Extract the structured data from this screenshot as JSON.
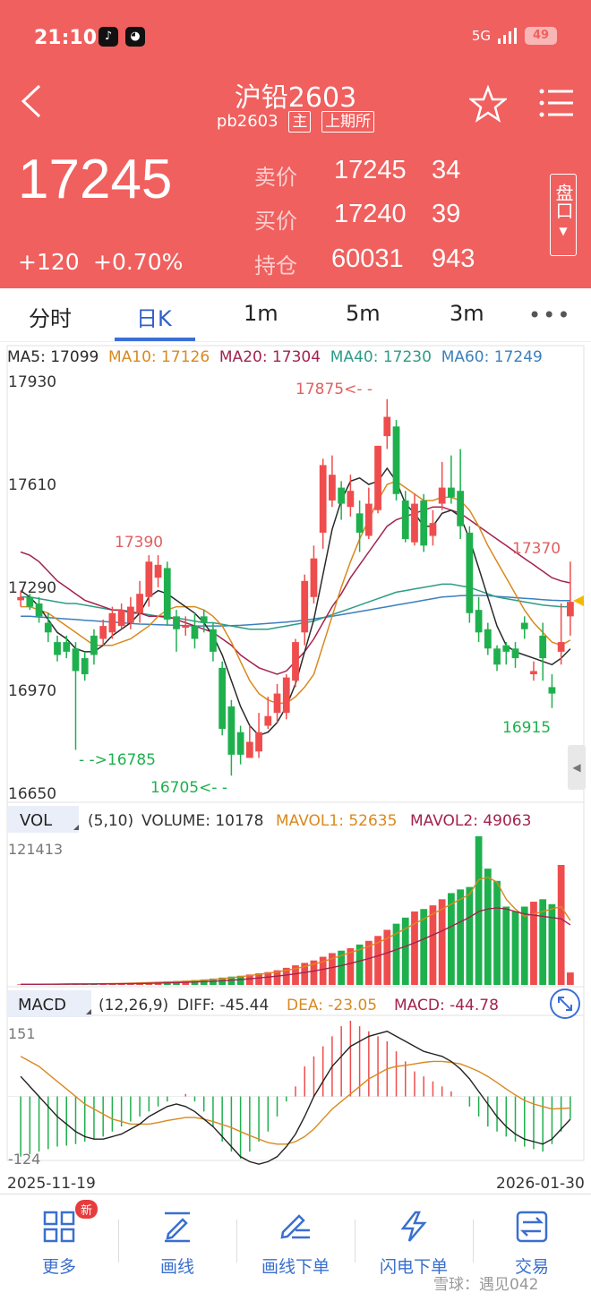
{
  "status_bar": {
    "time": "21:10",
    "network": "5G",
    "battery": "49"
  },
  "header": {
    "title": "沪铅2603",
    "code": "pb2603",
    "tag_main": "主",
    "tag_exchange": "上期所",
    "last_price": "17245",
    "change": "+120",
    "change_pct": "+0.70%",
    "quote": [
      {
        "label": "卖价",
        "price": "17245",
        "vol": "34"
      },
      {
        "label": "买价",
        "price": "17240",
        "vol": "39"
      },
      {
        "label": "持仓",
        "price": "60031",
        "vol": "943"
      }
    ],
    "pankou": "盘口"
  },
  "tabs": [
    "分时",
    "日K",
    "1m",
    "5m",
    "3m"
  ],
  "active_tab": "日K",
  "more": "•••",
  "ma_legend": [
    {
      "text": "MA5: 17099",
      "color": "#2a2a2a"
    },
    {
      "text": "MA10: 17126",
      "color": "#d9891e"
    },
    {
      "text": "MA20: 17304",
      "color": "#a3234f"
    },
    {
      "text": "MA40: 17230",
      "color": "#2d9c85"
    },
    {
      "text": "MA60: 17249",
      "color": "#3c7fbd"
    }
  ],
  "price_axis": [
    "17930",
    "17610",
    "17290",
    "16970",
    "16650"
  ],
  "annotations": {
    "high": "17875<- -",
    "a1": "17390",
    "a2": "17370",
    "low1": "- ->16785",
    "low2": "16705<- -",
    "low3": "16915"
  },
  "vol_panel": {
    "label": "VOL",
    "params": "(5,10)",
    "volume": "VOLUME: 10178",
    "mavol1": "MAVOL1: 52635",
    "mavol2": "MAVOL2: 49063",
    "max": "121413"
  },
  "macd_panel": {
    "label": "MACD",
    "params": "(12,26,9)",
    "diff": "DIFF: -45.44",
    "dea": "DEA: -23.05",
    "macd": "MACD: -44.78",
    "max": "151",
    "min": "-124"
  },
  "dates": {
    "start": "2025-11-19",
    "end": "2026-01-30"
  },
  "nav": [
    {
      "label": "更多",
      "icon": "grid-icon"
    },
    {
      "label": "画线",
      "icon": "draw-line-icon"
    },
    {
      "label": "画线下单",
      "icon": "draw-order-icon"
    },
    {
      "label": "闪电下单",
      "icon": "lightning-icon"
    },
    {
      "label": "交易",
      "icon": "trade-icon"
    }
  ],
  "new_badge": "新",
  "watermark": "雪球：遇见042",
  "colors": {
    "up": "#ef4d4d",
    "down": "#1fb04e",
    "header": "#f0605e",
    "accent": "#3b6fd8"
  },
  "chart_data": {
    "type": "candlestick",
    "ylim": [
      16650,
      17930
    ],
    "candles": [
      [
        17250,
        17260,
        17230,
        17280
      ],
      [
        17260,
        17230,
        17220,
        17270
      ],
      [
        17240,
        17200,
        17180,
        17260
      ],
      [
        17180,
        17150,
        17120,
        17210
      ],
      [
        17120,
        17080,
        17060,
        17140
      ],
      [
        17120,
        17090,
        17070,
        17140
      ],
      [
        17100,
        17030,
        16785,
        17120
      ],
      [
        17070,
        17020,
        17000,
        17090
      ],
      [
        17140,
        17080,
        17050,
        17160
      ],
      [
        17130,
        17170,
        17110,
        17190
      ],
      [
        17150,
        17210,
        17130,
        17230
      ],
      [
        17170,
        17220,
        17160,
        17240
      ],
      [
        17180,
        17230,
        17160,
        17260
      ],
      [
        17210,
        17270,
        17180,
        17310
      ],
      [
        17260,
        17370,
        17230,
        17390
      ],
      [
        17320,
        17360,
        17290,
        17390
      ],
      [
        17350,
        17190,
        17170,
        17370
      ],
      [
        17200,
        17160,
        17090,
        17220
      ],
      [
        17170,
        17170,
        17140,
        17200
      ],
      [
        17170,
        17130,
        17100,
        17210
      ],
      [
        17200,
        17180,
        17150,
        17220
      ],
      [
        17160,
        17090,
        17060,
        17180
      ],
      [
        17040,
        16850,
        16830,
        17060
      ],
      [
        16920,
        16770,
        16705,
        16940
      ],
      [
        16840,
        16770,
        16740,
        16860
      ],
      [
        16760,
        16810,
        16760,
        16860
      ],
      [
        16780,
        16840,
        16760,
        16900
      ],
      [
        16860,
        16890,
        16850,
        16950
      ],
      [
        16900,
        16960,
        16870,
        16990
      ],
      [
        16900,
        17010,
        16880,
        17020
      ],
      [
        17000,
        17120,
        16980,
        17130
      ],
      [
        17150,
        17310,
        17110,
        17330
      ],
      [
        17260,
        17380,
        17240,
        17420
      ],
      [
        17460,
        17670,
        17410,
        17690
      ],
      [
        17560,
        17640,
        17540,
        17700
      ],
      [
        17600,
        17550,
        17500,
        17620
      ],
      [
        17540,
        17590,
        17510,
        17640
      ],
      [
        17520,
        17460,
        17400,
        17560
      ],
      [
        17450,
        17550,
        17440,
        17600
      ],
      [
        17530,
        17730,
        17520,
        17730
      ],
      [
        17760,
        17820,
        17720,
        17875
      ],
      [
        17790,
        17580,
        17560,
        17810
      ],
      [
        17560,
        17440,
        17430,
        17590
      ],
      [
        17430,
        17550,
        17420,
        17580
      ],
      [
        17560,
        17420,
        17400,
        17580
      ],
      [
        17450,
        17490,
        17420,
        17530
      ],
      [
        17550,
        17600,
        17530,
        17680
      ],
      [
        17600,
        17570,
        17550,
        17700
      ],
      [
        17590,
        17480,
        17440,
        17720
      ],
      [
        17460,
        17210,
        17180,
        17480
      ],
      [
        17220,
        17150,
        17120,
        17260
      ],
      [
        17160,
        17100,
        17080,
        17180
      ],
      [
        17100,
        17050,
        17030,
        17110
      ],
      [
        17110,
        17090,
        17050,
        17120
      ],
      [
        17100,
        17070,
        17040,
        17120
      ],
      [
        17180,
        17160,
        17130,
        17200
      ],
      [
        17020,
        17030,
        17000,
        17060
      ],
      [
        17140,
        17070,
        17000,
        17180
      ],
      [
        16980,
        16960,
        16915,
        17020
      ],
      [
        17090,
        17120,
        17050,
        17240
      ],
      [
        17200,
        17245,
        17140,
        17370
      ]
    ],
    "ma5": [
      17280,
      17260,
      17230,
      17190,
      17150,
      17130,
      17100,
      17090,
      17090,
      17110,
      17140,
      17160,
      17180,
      17210,
      17260,
      17280,
      17270,
      17250,
      17230,
      17210,
      17180,
      17140,
      17080,
      17000,
      16920,
      16860,
      16830,
      16840,
      16870,
      16920,
      16990,
      17090,
      17190,
      17330,
      17470,
      17560,
      17620,
      17630,
      17610,
      17620,
      17660,
      17620,
      17550,
      17520,
      17480,
      17480,
      17520,
      17530,
      17510,
      17440,
      17350,
      17260,
      17170,
      17110,
      17090,
      17080,
      17070,
      17060,
      17050,
      17070,
      17099
    ],
    "ma10": [
      17230,
      17230,
      17220,
      17210,
      17190,
      17170,
      17150,
      17130,
      17110,
      17110,
      17110,
      17120,
      17130,
      17150,
      17170,
      17200,
      17220,
      17230,
      17230,
      17230,
      17220,
      17200,
      17170,
      17120,
      17060,
      17000,
      16960,
      16940,
      16930,
      16930,
      16950,
      16980,
      17020,
      17110,
      17200,
      17290,
      17370,
      17440,
      17500,
      17560,
      17610,
      17620,
      17600,
      17580,
      17560,
      17560,
      17570,
      17570,
      17560,
      17530,
      17480,
      17420,
      17370,
      17320,
      17270,
      17220,
      17180,
      17150,
      17120,
      17110,
      17126
    ],
    "ma20": [
      17400,
      17390,
      17370,
      17340,
      17310,
      17290,
      17270,
      17250,
      17240,
      17230,
      17220,
      17220,
      17210,
      17210,
      17200,
      17200,
      17200,
      17190,
      17180,
      17170,
      17160,
      17150,
      17130,
      17110,
      17080,
      17060,
      17040,
      17030,
      17020,
      17030,
      17060,
      17090,
      17130,
      17180,
      17230,
      17270,
      17320,
      17360,
      17400,
      17440,
      17480,
      17500,
      17510,
      17520,
      17530,
      17540,
      17540,
      17530,
      17520,
      17500,
      17480,
      17460,
      17440,
      17420,
      17400,
      17380,
      17360,
      17340,
      17320,
      17310,
      17304
    ],
    "ma40": [
      17260,
      17260,
      17255,
      17250,
      17245,
      17240,
      17240,
      17235,
      17230,
      17225,
      17220,
      17220,
      17215,
      17210,
      17205,
      17200,
      17195,
      17195,
      17190,
      17185,
      17180,
      17180,
      17175,
      17170,
      17165,
      17160,
      17160,
      17160,
      17165,
      17170,
      17175,
      17180,
      17185,
      17195,
      17205,
      17215,
      17225,
      17235,
      17245,
      17255,
      17265,
      17275,
      17280,
      17285,
      17290,
      17295,
      17300,
      17300,
      17295,
      17290,
      17280,
      17270,
      17260,
      17255,
      17250,
      17245,
      17240,
      17235,
      17232,
      17230,
      17230
    ],
    "ma60": [
      17200,
      17200,
      17198,
      17196,
      17194,
      17192,
      17190,
      17188,
      17186,
      17184,
      17182,
      17180,
      17178,
      17176,
      17175,
      17174,
      17173,
      17172,
      17171,
      17170,
      17170,
      17170,
      17170,
      17171,
      17172,
      17174,
      17176,
      17178,
      17180,
      17182,
      17185,
      17188,
      17192,
      17196,
      17200,
      17205,
      17210,
      17215,
      17220,
      17225,
      17230,
      17235,
      17240,
      17245,
      17250,
      17255,
      17260,
      17262,
      17264,
      17265,
      17265,
      17264,
      17262,
      17260,
      17258,
      17256,
      17254,
      17252,
      17250,
      17249,
      17249
    ],
    "volume": [
      500,
      600,
      550,
      700,
      650,
      800,
      900,
      1000,
      1100,
      1200,
      1400,
      1600,
      1800,
      2000,
      2300,
      2600,
      3000,
      3200,
      3500,
      4000,
      4500,
      5200,
      6000,
      6800,
      7500,
      8500,
      9500,
      10500,
      12000,
      14000,
      16000,
      18000,
      20000,
      23000,
      26000,
      28000,
      30000,
      33000,
      36000,
      40000,
      45000,
      50000,
      55000,
      60000,
      62000,
      65000,
      70000,
      75000,
      78000,
      80000,
      121413,
      95000,
      85000,
      64000,
      60000,
      64000,
      68000,
      70000,
      66000,
      98000,
      10178
    ],
    "mavol1": [
      500,
      520,
      550,
      600,
      650,
      700,
      750,
      800,
      900,
      1000,
      1100,
      1250,
      1400,
      1600,
      1800,
      2100,
      2400,
      2700,
      3000,
      3400,
      3900,
      4400,
      5100,
      5900,
      6700,
      7600,
      8600,
      9600,
      10700,
      11900,
      13300,
      15000,
      17000,
      19000,
      21500,
      24000,
      26500,
      29000,
      31500,
      34500,
      38000,
      42000,
      46000,
      50000,
      54000,
      58000,
      62000,
      66000,
      70000,
      74000,
      86000,
      88000,
      84000,
      70000,
      62000,
      56000,
      58000,
      60000,
      62000,
      64000,
      52635
    ],
    "mavol2": [
      500,
      520,
      540,
      560,
      600,
      650,
      700,
      750,
      800,
      850,
      900,
      980,
      1080,
      1200,
      1350,
      1500,
      1700,
      1900,
      2100,
      2400,
      2700,
      3000,
      3400,
      3900,
      4400,
      5000,
      5700,
      6400,
      7200,
      8100,
      9100,
      10200,
      11400,
      12700,
      14200,
      15800,
      17600,
      19500,
      21600,
      23800,
      26200,
      28800,
      31500,
      34400,
      37500,
      40800,
      44200,
      47800,
      51500,
      55300,
      60000,
      62000,
      63000,
      62000,
      60000,
      58000,
      57000,
      56000,
      55000,
      54000,
      49063
    ],
    "macd_hist": [
      -120,
      -115,
      -110,
      -105,
      -100,
      -98,
      -95,
      -90,
      -85,
      -80,
      -70,
      -60,
      -50,
      -40,
      -30,
      -20,
      -10,
      0,
      5,
      -10,
      -30,
      -60,
      -90,
      -110,
      -124,
      -110,
      -90,
      -70,
      -40,
      -10,
      20,
      60,
      80,
      100,
      120,
      140,
      151,
      140,
      130,
      120,
      110,
      90,
      70,
      50,
      40,
      30,
      20,
      10,
      0,
      -20,
      -40,
      -60,
      -70,
      -80,
      -90,
      -100,
      -105,
      -110,
      -95,
      -70,
      -44.78
    ],
    "diff": [
      40,
      20,
      0,
      -20,
      -40,
      -55,
      -70,
      -80,
      -85,
      -85,
      -80,
      -75,
      -65,
      -55,
      -40,
      -30,
      -20,
      -15,
      -20,
      -30,
      -45,
      -60,
      -80,
      -100,
      -120,
      -130,
      -135,
      -130,
      -120,
      -100,
      -75,
      -40,
      0,
      30,
      60,
      80,
      100,
      110,
      120,
      125,
      130,
      120,
      110,
      100,
      90,
      85,
      80,
      70,
      55,
      35,
      10,
      -15,
      -40,
      -60,
      -75,
      -85,
      -90,
      -95,
      -85,
      -65,
      -45.44
    ],
    "dea": [
      80,
      70,
      60,
      45,
      30,
      15,
      0,
      -15,
      -25,
      -35,
      -45,
      -50,
      -55,
      -55,
      -55,
      -52,
      -48,
      -45,
      -42,
      -42,
      -45,
      -50,
      -56,
      -62,
      -70,
      -78,
      -85,
      -92,
      -95,
      -95,
      -90,
      -80,
      -65,
      -45,
      -25,
      -10,
      5,
      20,
      35,
      45,
      55,
      60,
      62,
      65,
      68,
      70,
      70,
      68,
      65,
      58,
      50,
      40,
      28,
      15,
      3,
      -8,
      -15,
      -20,
      -25,
      -24,
      -23.05
    ]
  }
}
